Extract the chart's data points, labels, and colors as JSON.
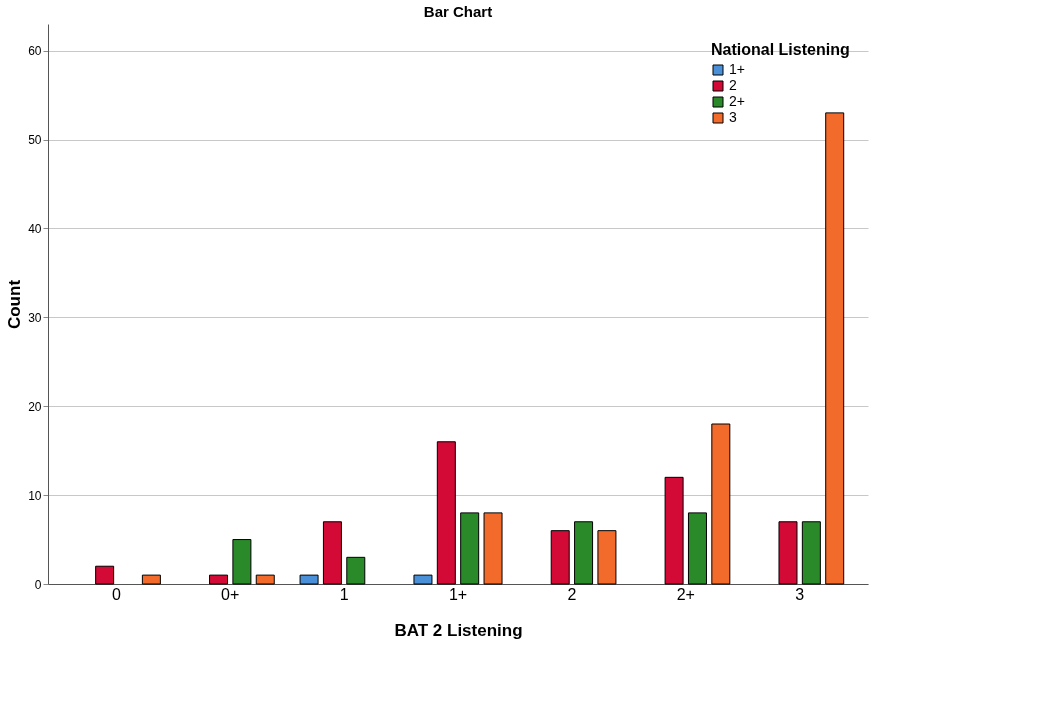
{
  "chart_data": {
    "type": "bar",
    "title": "Bar Chart",
    "xlabel": "BAT 2 Listening",
    "ylabel": "Count",
    "legend_title": "National Listening",
    "categories": [
      "0",
      "0+",
      "1",
      "1+",
      "2",
      "2+",
      "3"
    ],
    "series": [
      {
        "name": "1+",
        "color": "#4a90d9",
        "values": [
          null,
          null,
          1,
          1,
          null,
          null,
          null
        ]
      },
      {
        "name": "2",
        "color": "#d20a35",
        "values": [
          2,
          1,
          7,
          16,
          6,
          12,
          7
        ]
      },
      {
        "name": "2+",
        "color": "#2a8a2a",
        "values": [
          null,
          5,
          3,
          8,
          7,
          8,
          7
        ]
      },
      {
        "name": "3",
        "color": "#f26b2a",
        "values": [
          1,
          1,
          null,
          8,
          6,
          18,
          53
        ]
      }
    ],
    "ylim": [
      0,
      63
    ],
    "yticks": [
      0,
      10,
      20,
      30,
      40,
      50,
      60
    ],
    "grid": "y",
    "legend": "top right"
  }
}
